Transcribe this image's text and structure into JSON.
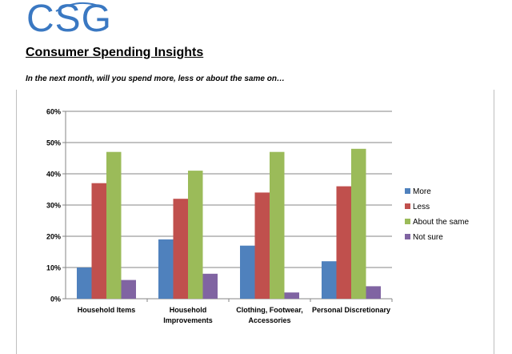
{
  "brand": {
    "logo_text": "CSG"
  },
  "report": {
    "title": "Consumer Spending Insights",
    "question": "In the next month, will you spend more, less or about the same on…"
  },
  "chart_data": {
    "type": "bar",
    "categories": [
      [
        "Household Items"
      ],
      [
        "Household",
        "Improvements"
      ],
      [
        "Clothing, Footwear,",
        "Accessories"
      ],
      [
        "Personal Discretionary"
      ]
    ],
    "series": [
      {
        "name": "More",
        "color": "#4f81bd",
        "values": [
          10,
          19,
          17,
          12
        ]
      },
      {
        "name": "Less",
        "color": "#c0504d",
        "values": [
          37,
          32,
          34,
          36
        ]
      },
      {
        "name": "About the same",
        "color": "#9bbb59",
        "values": [
          47,
          41,
          47,
          48
        ]
      },
      {
        "name": "Not sure",
        "color": "#8064a2",
        "values": [
          6,
          8,
          2,
          4
        ]
      }
    ],
    "ylim": [
      0,
      60
    ],
    "yticks": [
      0,
      10,
      20,
      30,
      40,
      50,
      60
    ],
    "ytick_labels": [
      "0%",
      "10%",
      "20%",
      "30%",
      "40%",
      "50%",
      "60%"
    ],
    "grid": true,
    "legend_position": "right"
  }
}
